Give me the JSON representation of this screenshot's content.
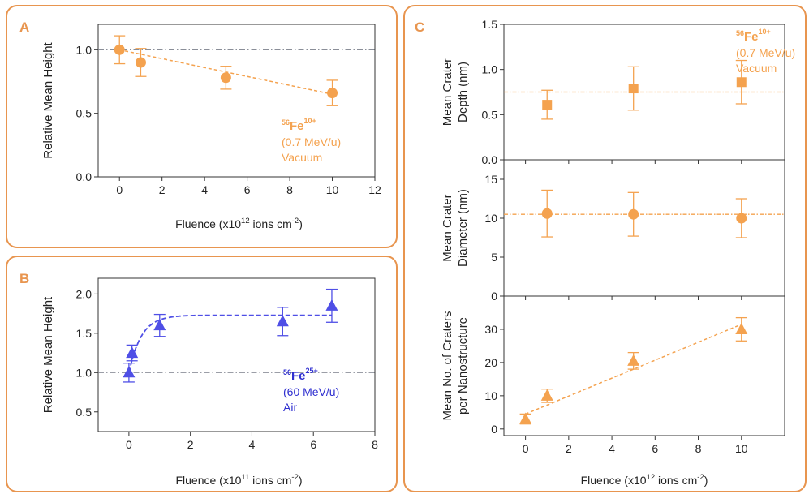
{
  "panels": [
    {
      "letter": "A",
      "color": "#e8954f"
    },
    {
      "letter": "B",
      "color": "#e8954f"
    },
    {
      "letter": "C",
      "color": "#e8954f"
    }
  ],
  "chart_data": [
    {
      "id": "A",
      "type": "scatter",
      "ylabel": "Relative Mean Height",
      "xlabel_parts": [
        "Fluence (x10",
        "12",
        " ions cm",
        "-2",
        ")"
      ],
      "xlim": [
        -1,
        12
      ],
      "ylim": [
        0,
        1.2
      ],
      "xticks": [
        0,
        2,
        4,
        6,
        8,
        10,
        12
      ],
      "yticks": [
        0.0,
        0.5,
        1.0
      ],
      "ytick_labels": [
        "0.0",
        "0.5",
        "1.0"
      ],
      "marker": "circle",
      "color": "#f4a24f",
      "reference_line": 1.0,
      "x": [
        0,
        1,
        5,
        10
      ],
      "y": [
        1.0,
        0.9,
        0.78,
        0.66
      ],
      "yerr": [
        0.11,
        0.11,
        0.09,
        0.1
      ],
      "fit": {
        "kind": "linear",
        "x": [
          0,
          10
        ],
        "y": [
          1.0,
          0.65
        ]
      },
      "annotation": {
        "isotope_mass": "56",
        "element": "Fe",
        "charge": "10+",
        "line2": "(0.7 MeV/u)",
        "line3": "Vacuum",
        "color": "#f4a24f"
      }
    },
    {
      "id": "B",
      "type": "scatter",
      "ylabel": "Relative Mean Height",
      "xlabel_parts": [
        "Fluence (x10",
        "11",
        " ions cm",
        "-2",
        ")"
      ],
      "xlim": [
        -1,
        8
      ],
      "ylim": [
        0.25,
        2.2
      ],
      "xticks": [
        0,
        2,
        4,
        6,
        8
      ],
      "yticks": [
        0.5,
        1.0,
        1.5,
        2.0
      ],
      "ytick_labels": [
        "0.5",
        "1.0",
        "1.5",
        "2.0"
      ],
      "marker": "triangle",
      "color": "#4f4fe6",
      "reference_line": 1.0,
      "x": [
        0,
        0.1,
        1,
        5,
        6.6
      ],
      "y": [
        1.0,
        1.25,
        1.6,
        1.65,
        1.85
      ],
      "yerr": [
        0.12,
        0.1,
        0.14,
        0.18,
        0.21
      ],
      "fit": {
        "kind": "saturating",
        "x0": 0,
        "y0": 1.0,
        "a": 0.73,
        "k": 2.5
      },
      "annotation": {
        "isotope_mass": "56",
        "element": "Fe",
        "charge": "25+",
        "line2": "(60 MeV/u)",
        "line3": "Air",
        "color": "#2f2fd0"
      }
    },
    {
      "id": "C1",
      "type": "scatter",
      "ylabel_lines": [
        "Mean Crater",
        "Depth (nm)"
      ],
      "xlim": [
        -1,
        12
      ],
      "ylim": [
        0,
        1.5
      ],
      "yticks": [
        0.0,
        0.5,
        1.0,
        1.5
      ],
      "ytick_labels": [
        "0.0",
        "0.5",
        "1.0",
        "1.5"
      ],
      "marker": "square",
      "color": "#f4a24f",
      "x": [
        1,
        5,
        10
      ],
      "y": [
        0.61,
        0.79,
        0.86
      ],
      "yerr": [
        0.16,
        0.24,
        0.24
      ],
      "hline": 0.75,
      "annotation": {
        "isotope_mass": "56",
        "element": "Fe",
        "charge": "10+",
        "line2": "(0.7 MeV/u)",
        "line3": "Vacuum",
        "color": "#f4a24f"
      }
    },
    {
      "id": "C2",
      "type": "scatter",
      "ylabel_lines": [
        "Mean Crater",
        "Diameter (nm)"
      ],
      "xlim": [
        -1,
        12
      ],
      "ylim": [
        0,
        17.5
      ],
      "yticks": [
        0,
        5,
        10,
        15
      ],
      "ytick_labels": [
        "0",
        "5",
        "10",
        "15"
      ],
      "marker": "circle",
      "color": "#f4a24f",
      "x": [
        1,
        5,
        10
      ],
      "y": [
        10.6,
        10.5,
        10.0
      ],
      "yerr": [
        3.0,
        2.8,
        2.5
      ],
      "hline": 10.5
    },
    {
      "id": "C3",
      "type": "scatter",
      "ylabel_lines": [
        "Mean No. of Craters",
        "per Nanostructure"
      ],
      "xlabel_parts": [
        "Fluence (x10",
        "12",
        " ions cm",
        "-2",
        ")"
      ],
      "xlim": [
        -1,
        12
      ],
      "ylim": [
        -2,
        40
      ],
      "xticks": [
        0,
        2,
        4,
        6,
        8,
        10
      ],
      "yticks": [
        0,
        10,
        20,
        30
      ],
      "ytick_labels": [
        "0",
        "10",
        "20",
        "30"
      ],
      "marker": "triangle",
      "color": "#f4a24f",
      "x": [
        0,
        1,
        5,
        10
      ],
      "y": [
        3.0,
        10.0,
        20.5,
        30.0
      ],
      "yerr": [
        1.5,
        2.0,
        2.5,
        3.5
      ],
      "fit": {
        "kind": "linear",
        "x": [
          0,
          10
        ],
        "y": [
          4.5,
          31.5
        ]
      }
    }
  ]
}
